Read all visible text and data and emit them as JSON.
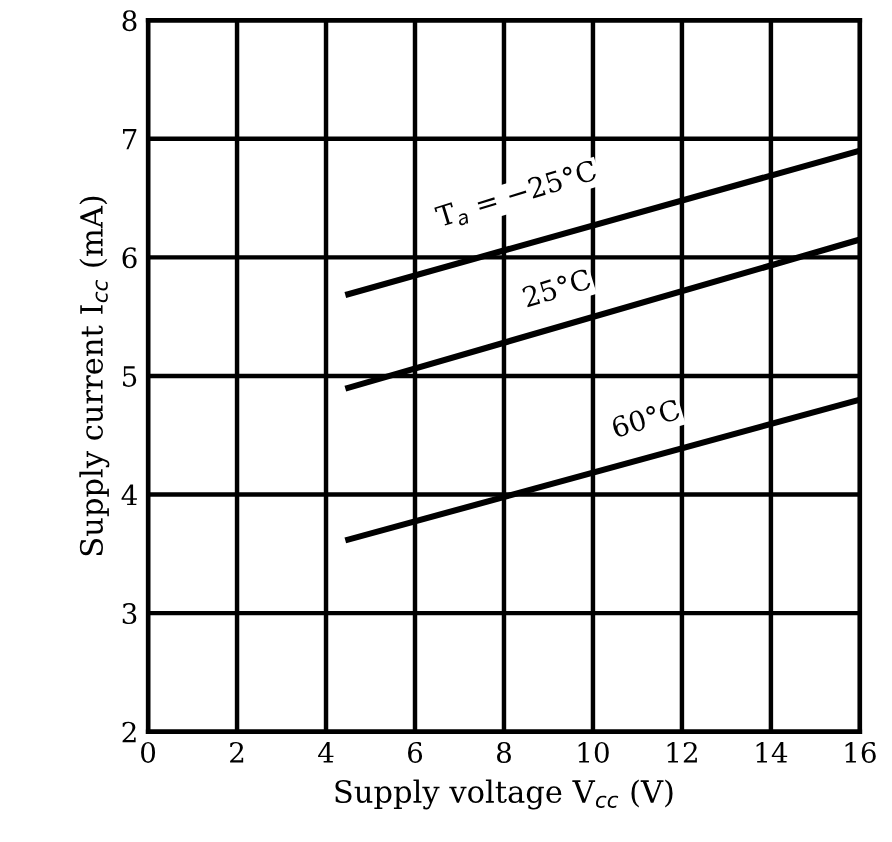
{
  "chart_data": {
    "type": "line",
    "xlabel": "Supply voltage V$_{cc}$ (V)",
    "ylabel": "Supply current I$_{cc}$ (mA)",
    "x": [
      4.5,
      16
    ],
    "series": [
      {
        "color": "#000000",
        "values": [
          5.69,
          6.9
        ]
      },
      {
        "color": "#000000",
        "values": [
          4.9,
          6.15
        ]
      },
      {
        "color": "#000000",
        "values": [
          3.62,
          4.8
        ]
      }
    ],
    "annotations": [
      {
        "text": "T$_{a}$ = −25°C",
        "x": 8.3,
        "y": 6.09
      },
      {
        "text": "25°C",
        "x": 9.2,
        "y": 5.41
      },
      {
        "text": "60°C",
        "x": 11.2,
        "y": 4.31
      }
    ],
    "xlim": [
      0,
      16
    ],
    "xticks": [
      0,
      2,
      4,
      6,
      8,
      10,
      12,
      14,
      16
    ],
    "ylim": [
      2,
      8
    ],
    "yticks": [
      2,
      3,
      4,
      5,
      6,
      7,
      8
    ],
    "grid": true,
    "marker": "none",
    "line_style": "solid"
  }
}
